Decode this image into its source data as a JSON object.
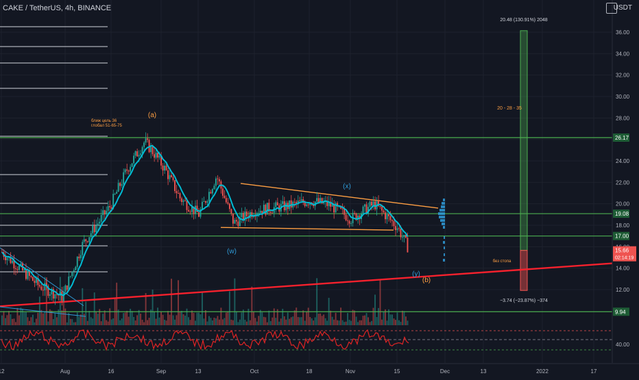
{
  "header": {
    "symbol": "CAKE / TetherUS, 4h, BINANCE",
    "currency": "USDT"
  },
  "annotations": {
    "wave_a": "(a)",
    "wave_b": "(b)",
    "wave_w": "(w)",
    "wave_x": "(x)",
    "wave_y": "(y)",
    "target_note_1": "ближ цель 36",
    "target_note_2": "глобал 51-65-75",
    "targets_label": "20 - 28 - 35",
    "no_stop": "без стопа",
    "profit_box": "20.48 (130.91%) 2048",
    "loss_box": "−3.74 (−23.87%) −374"
  },
  "price_axis": {
    "ticks": [
      "36.00",
      "34.00",
      "32.00",
      "30.00",
      "28.00",
      "26.00",
      "24.00",
      "22.00",
      "20.00",
      "18.00",
      "16.00",
      "14.00",
      "12.00"
    ],
    "badges": [
      {
        "label": "26.17",
        "color": "#1e5c35"
      },
      {
        "label": "19.08",
        "color": "#1e5c35"
      },
      {
        "label": "17.00",
        "color": "#1e5c35"
      },
      {
        "label": "9.94",
        "color": "#1e5c35"
      }
    ],
    "last_price": "15.66",
    "countdown": "02:14:19",
    "last_price_color": "#ef5350"
  },
  "indicator_axis": {
    "tick": "40.00"
  },
  "time_axis": {
    "labels": [
      "12",
      "Aug",
      "16",
      "Sep",
      "13",
      "Oct",
      "18",
      "Nov",
      "15",
      "Dec",
      "13",
      "2022",
      "17"
    ]
  },
  "colors": {
    "background": "#131722",
    "bull": "#26a69a",
    "bear": "#ef5350",
    "level_line": "#4caf50",
    "ma_line": "#00bcd4",
    "trend_red": "#f7212d",
    "wedge": "#ff9f43",
    "rsi": "#e02424"
  },
  "chart_data": {
    "type": "candlestick",
    "title": "CAKE / TetherUS, 4h, BINANCE",
    "y_axis_range": [
      10.5,
      38.3
    ],
    "y_ticks": [
      12,
      14,
      16,
      18,
      20,
      22,
      24,
      26,
      28,
      30,
      32,
      34,
      36
    ],
    "x_tick_labels": [
      "12",
      "Aug",
      "16",
      "Sep",
      "13",
      "Oct",
      "18",
      "Nov",
      "15",
      "Dec",
      "13",
      "2022",
      "17"
    ],
    "close_path_approx": [
      {
        "t": "Jul 12",
        "close": 15.5
      },
      {
        "t": "Jul 25",
        "close": 12.4
      },
      {
        "t": "Aug 1",
        "close": 11.3
      },
      {
        "t": "Aug 10",
        "close": 16.3
      },
      {
        "t": "Aug 16",
        "close": 19.8
      },
      {
        "t": "Aug 22",
        "close": 23.3
      },
      {
        "t": "Aug 28",
        "close": 25.8
      },
      {
        "t": "Sep 1",
        "close": 24.6
      },
      {
        "t": "Sep 5",
        "close": 23.2
      },
      {
        "t": "Sep 9",
        "close": 20.5
      },
      {
        "t": "Sep 13",
        "close": 19.0
      },
      {
        "t": "Sep 20",
        "close": 22.6
      },
      {
        "t": "Sep 25",
        "close": 18.2
      },
      {
        "t": "Oct 1",
        "close": 19.4
      },
      {
        "t": "Oct 10",
        "close": 19.8
      },
      {
        "t": "Oct 18",
        "close": 20.3
      },
      {
        "t": "Oct 25",
        "close": 19.9
      },
      {
        "t": "Nov 1",
        "close": 18.6
      },
      {
        "t": "Nov 8",
        "close": 20.0
      },
      {
        "t": "Nov 15",
        "close": 17.8
      },
      {
        "t": "Nov 19",
        "close": 15.7
      }
    ],
    "horizontal_levels": [
      26.17,
      19.08,
      17.0,
      9.94
    ],
    "last_price": 15.66,
    "position": {
      "entry": 15.66,
      "target": 36.14,
      "stop": 11.92,
      "profit": 20.48,
      "profit_pct": 130.91,
      "loss": -3.74,
      "loss_pct": -23.87
    }
  }
}
